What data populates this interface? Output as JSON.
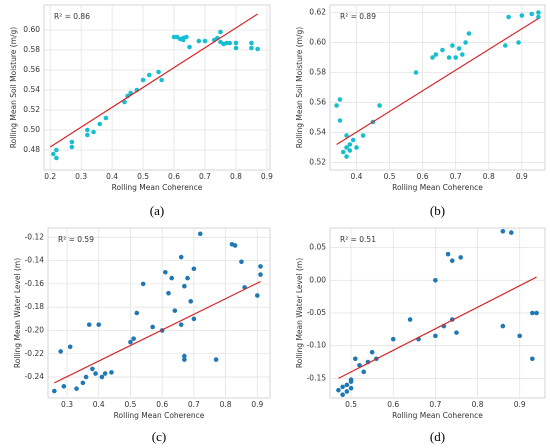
{
  "chart_data": [
    {
      "type": "scatter",
      "annotation": "R² = 0.86",
      "xlabel": "Rolling Mean Coherence",
      "ylabel": "Rolling Mean Soil Moisture (m/g)",
      "caption": "(a)",
      "xlim": [
        0.18,
        0.91
      ],
      "ylim": [
        0.46,
        0.625
      ],
      "xticks": [
        0.2,
        0.3,
        0.4,
        0.5,
        0.6,
        0.7,
        0.8,
        0.9
      ],
      "yticks": [
        0.48,
        {
          "value": 0.5,
          "label": "0.50"
        },
        0.52,
        0.54,
        0.56,
        0.58,
        {
          "value": 0.6,
          "label": "0.60"
        }
      ],
      "series": [
        {
          "color": "#17becf",
          "x": [
            0.21,
            0.22,
            0.22,
            0.27,
            0.27,
            0.32,
            0.32,
            0.34,
            0.36,
            0.38,
            0.44,
            0.45,
            0.46,
            0.48,
            0.5,
            0.52,
            0.55,
            0.56,
            0.6,
            0.61,
            0.62,
            0.63,
            0.63,
            0.64,
            0.65,
            0.68,
            0.7,
            0.73,
            0.74,
            0.75,
            0.75,
            0.76,
            0.77,
            0.78,
            0.8,
            0.8,
            0.85,
            0.85,
            0.87
          ],
          "values": [
            0.476,
            0.472,
            0.48,
            0.483,
            0.488,
            0.495,
            0.5,
            0.498,
            0.506,
            0.512,
            0.528,
            0.534,
            0.537,
            0.54,
            0.55,
            0.555,
            0.558,
            0.55,
            0.593,
            0.593,
            0.591,
            0.592,
            0.59,
            0.593,
            0.583,
            0.589,
            0.589,
            0.59,
            0.592,
            0.598,
            0.588,
            0.586,
            0.587,
            0.587,
            0.587,
            0.582,
            0.587,
            0.582,
            0.581
          ]
        }
      ],
      "fit": {
        "color": "#d62728",
        "x": [
          0.2,
          0.87
        ],
        "values": [
          0.483,
          0.616
        ]
      }
    },
    {
      "type": "scatter",
      "annotation": "R² = 0.89",
      "xlabel": "Rolling Mean Coherence",
      "ylabel": "Rolling Mean Soil Moisture (m/g)",
      "caption": "(b)",
      "xlim": [
        0.32,
        0.97
      ],
      "ylim": [
        0.515,
        0.625
      ],
      "xticks": [
        0.4,
        0.5,
        0.6,
        0.7,
        0.8,
        0.9
      ],
      "yticks": [
        0.52,
        0.54,
        0.56,
        0.58,
        {
          "value": 0.6,
          "label": "0.60"
        },
        0.62
      ],
      "series": [
        {
          "color": "#17becf",
          "x": [
            0.34,
            0.35,
            0.35,
            0.36,
            0.37,
            0.37,
            0.38,
            0.38,
            0.37,
            0.39,
            0.4,
            0.42,
            0.45,
            0.47,
            0.58,
            0.63,
            0.64,
            0.66,
            0.68,
            0.69,
            0.7,
            0.71,
            0.72,
            0.73,
            0.74,
            0.85,
            0.86,
            0.89,
            0.9,
            0.93,
            0.95,
            0.95
          ],
          "values": [
            0.558,
            0.562,
            0.548,
            0.527,
            0.53,
            0.524,
            0.532,
            0.528,
            0.538,
            0.535,
            0.53,
            0.538,
            0.547,
            0.558,
            0.58,
            0.59,
            0.592,
            0.595,
            0.59,
            0.598,
            0.59,
            0.596,
            0.592,
            0.6,
            0.606,
            0.598,
            0.617,
            0.6,
            0.618,
            0.619,
            0.62,
            0.617
          ]
        }
      ],
      "fit": {
        "color": "#d62728",
        "x": [
          0.34,
          0.95
        ],
        "values": [
          0.532,
          0.616
        ]
      }
    },
    {
      "type": "scatter",
      "annotation": "R² = 0.59",
      "xlabel": "Rolling Mean Coherence",
      "ylabel": "Rolling Mean Water Level (m)",
      "caption": "(c)",
      "xlim": [
        0.24,
        0.94
      ],
      "ylim": [
        -0.258,
        -0.112
      ],
      "xticks": [
        0.3,
        0.4,
        0.5,
        0.6,
        0.7,
        0.8,
        0.9
      ],
      "yticks": [
        -0.24,
        -0.22,
        {
          "value": -0.2,
          "label": "-0.20"
        },
        -0.18,
        -0.16,
        -0.14,
        -0.12
      ],
      "series": [
        {
          "color": "#1f77b4",
          "x": [
            0.26,
            0.28,
            0.29,
            0.31,
            0.33,
            0.35,
            0.36,
            0.37,
            0.38,
            0.39,
            0.4,
            0.41,
            0.42,
            0.44,
            0.5,
            0.51,
            0.52,
            0.54,
            0.57,
            0.6,
            0.61,
            0.62,
            0.63,
            0.64,
            0.66,
            0.66,
            0.67,
            0.67,
            0.67,
            0.68,
            0.69,
            0.7,
            0.7,
            0.72,
            0.77,
            0.82,
            0.83,
            0.85,
            0.86,
            0.9,
            0.91,
            0.91
          ],
          "values": [
            -0.252,
            -0.218,
            -0.248,
            -0.214,
            -0.25,
            -0.245,
            -0.24,
            -0.195,
            -0.233,
            -0.237,
            -0.195,
            -0.24,
            -0.237,
            -0.236,
            -0.21,
            -0.207,
            -0.185,
            -0.16,
            -0.197,
            -0.2,
            -0.15,
            -0.168,
            -0.155,
            -0.183,
            -0.195,
            -0.137,
            -0.162,
            -0.225,
            -0.222,
            -0.155,
            -0.175,
            -0.147,
            -0.19,
            -0.117,
            -0.225,
            -0.126,
            -0.127,
            -0.141,
            -0.163,
            -0.17,
            -0.145,
            -0.152
          ]
        }
      ],
      "fit": {
        "color": "#d62728",
        "x": [
          0.26,
          0.91
        ],
        "values": [
          -0.245,
          -0.158
        ]
      }
    },
    {
      "type": "scatter",
      "annotation": "R² = 0.51",
      "xlabel": "Rolling Mean Coherence",
      "ylabel": "Rolling Mean Water Level (m)",
      "caption": "(d)",
      "xlim": [
        0.45,
        0.96
      ],
      "ylim": [
        -0.18,
        0.08
      ],
      "xticks": [
        0.5,
        0.6,
        0.7,
        0.8,
        0.9
      ],
      "yticks": [
        -0.15,
        {
          "value": -0.1,
          "label": "-0.10"
        },
        -0.05,
        {
          "value": 0,
          "label": "0.00"
        },
        0.05
      ],
      "series": [
        {
          "color": "#1f77b4",
          "x": [
            0.47,
            0.48,
            0.48,
            0.49,
            0.49,
            0.5,
            0.5,
            0.5,
            0.51,
            0.52,
            0.53,
            0.54,
            0.55,
            0.56,
            0.6,
            0.64,
            0.66,
            0.7,
            0.7,
            0.72,
            0.73,
            0.74,
            0.75,
            0.74,
            0.76,
            0.86,
            0.86,
            0.88,
            0.9,
            0.93,
            0.93,
            0.94
          ],
          "values": [
            -0.168,
            -0.175,
            -0.163,
            -0.17,
            -0.16,
            -0.155,
            -0.152,
            -0.165,
            -0.12,
            -0.13,
            -0.14,
            -0.125,
            -0.11,
            -0.12,
            -0.09,
            -0.06,
            -0.09,
            -0.085,
            0.0,
            -0.07,
            0.04,
            -0.06,
            -0.08,
            0.03,
            0.035,
            0.075,
            -0.07,
            0.073,
            -0.085,
            -0.12,
            -0.05,
            -0.05
          ]
        }
      ],
      "fit": {
        "color": "#d62728",
        "x": [
          0.47,
          0.94
        ],
        "values": [
          -0.15,
          0.005
        ]
      }
    }
  ]
}
